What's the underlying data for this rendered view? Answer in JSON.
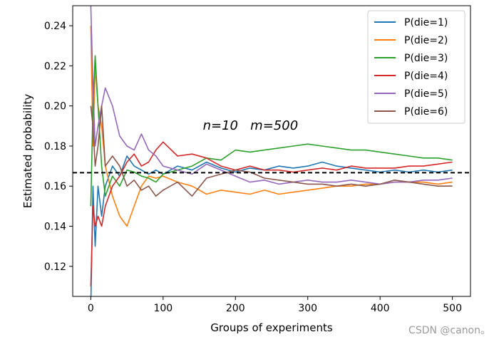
{
  "chart_data": {
    "type": "line",
    "title": "",
    "xlabel": "Groups of experiments",
    "ylabel": "Estimated probability",
    "xlim": [
      -25,
      525
    ],
    "ylim": [
      0.105,
      0.25
    ],
    "xticks": [
      0,
      100,
      200,
      300,
      400,
      500
    ],
    "yticks": [
      0.12,
      0.14,
      0.16,
      0.18,
      0.2,
      0.22,
      0.24
    ],
    "ytick_labels": [
      "0.12",
      "0.14",
      "0.16",
      "0.18",
      "0.20",
      "0.22",
      "0.24"
    ],
    "grid": false,
    "legend": "top-right",
    "reference_line": {
      "y": 0.1667,
      "style": "dashed",
      "color": "#000000"
    },
    "annotation": "n=10   m=500",
    "series": [
      {
        "name": "P(die=1)",
        "color": "#1f77b4",
        "x": [
          0,
          3,
          6,
          10,
          15,
          20,
          30,
          40,
          50,
          60,
          70,
          80,
          90,
          100,
          120,
          140,
          160,
          180,
          200,
          220,
          240,
          260,
          280,
          300,
          320,
          340,
          360,
          380,
          400,
          420,
          440,
          460,
          480,
          500
        ],
        "y": [
          0.1,
          0.16,
          0.13,
          0.16,
          0.145,
          0.16,
          0.17,
          0.165,
          0.175,
          0.17,
          0.168,
          0.166,
          0.168,
          0.166,
          0.17,
          0.168,
          0.172,
          0.169,
          0.167,
          0.169,
          0.168,
          0.17,
          0.169,
          0.17,
          0.172,
          0.17,
          0.169,
          0.168,
          0.167,
          0.168,
          0.167,
          0.168,
          0.167,
          0.168
        ]
      },
      {
        "name": "P(die=2)",
        "color": "#ff7f0e",
        "x": [
          0,
          3,
          6,
          10,
          15,
          20,
          30,
          40,
          50,
          60,
          70,
          80,
          90,
          100,
          120,
          140,
          160,
          180,
          200,
          220,
          240,
          260,
          280,
          300,
          320,
          340,
          360,
          380,
          400,
          420,
          440,
          460,
          480,
          500
        ],
        "y": [
          0.24,
          0.18,
          0.22,
          0.2,
          0.19,
          0.17,
          0.155,
          0.145,
          0.14,
          0.15,
          0.16,
          0.165,
          0.164,
          0.165,
          0.162,
          0.16,
          0.156,
          0.158,
          0.157,
          0.156,
          0.158,
          0.156,
          0.157,
          0.158,
          0.159,
          0.16,
          0.16,
          0.161,
          0.161,
          0.162,
          0.162,
          0.162,
          0.161,
          0.162
        ]
      },
      {
        "name": "P(die=3)",
        "color": "#2ca02c",
        "x": [
          0,
          3,
          6,
          10,
          15,
          20,
          30,
          40,
          50,
          60,
          70,
          80,
          90,
          100,
          120,
          140,
          160,
          180,
          200,
          220,
          240,
          260,
          280,
          300,
          320,
          340,
          360,
          380,
          400,
          420,
          440,
          460,
          480,
          500
        ],
        "y": [
          0.15,
          0.2,
          0.225,
          0.2,
          0.17,
          0.155,
          0.165,
          0.16,
          0.168,
          0.167,
          0.165,
          0.164,
          0.162,
          0.166,
          0.168,
          0.17,
          0.174,
          0.173,
          0.178,
          0.177,
          0.178,
          0.179,
          0.18,
          0.181,
          0.18,
          0.179,
          0.178,
          0.178,
          0.177,
          0.176,
          0.175,
          0.174,
          0.174,
          0.173
        ]
      },
      {
        "name": "P(die=4)",
        "color": "#d62728",
        "x": [
          0,
          3,
          6,
          10,
          15,
          20,
          30,
          40,
          50,
          60,
          70,
          80,
          90,
          100,
          120,
          140,
          160,
          180,
          200,
          220,
          240,
          260,
          280,
          300,
          320,
          340,
          360,
          380,
          400,
          420,
          440,
          460,
          480,
          500
        ],
        "y": [
          0.11,
          0.15,
          0.14,
          0.145,
          0.14,
          0.15,
          0.16,
          0.165,
          0.172,
          0.176,
          0.17,
          0.172,
          0.178,
          0.182,
          0.175,
          0.176,
          0.174,
          0.17,
          0.168,
          0.17,
          0.168,
          0.168,
          0.167,
          0.168,
          0.169,
          0.168,
          0.17,
          0.169,
          0.169,
          0.169,
          0.17,
          0.17,
          0.171,
          0.172
        ]
      },
      {
        "name": "P(die=5)",
        "color": "#9467bd",
        "x": [
          0,
          3,
          6,
          10,
          15,
          20,
          30,
          40,
          50,
          60,
          70,
          80,
          90,
          100,
          120,
          140,
          160,
          180,
          200,
          220,
          240,
          260,
          280,
          300,
          320,
          340,
          360,
          380,
          400,
          420,
          440,
          460,
          480,
          500
        ],
        "y": [
          0.25,
          0.21,
          0.18,
          0.19,
          0.2,
          0.209,
          0.2,
          0.185,
          0.18,
          0.178,
          0.186,
          0.178,
          0.175,
          0.17,
          0.168,
          0.166,
          0.171,
          0.168,
          0.165,
          0.162,
          0.163,
          0.161,
          0.162,
          0.163,
          0.162,
          0.162,
          0.163,
          0.162,
          0.161,
          0.162,
          0.162,
          0.163,
          0.163,
          0.164
        ]
      },
      {
        "name": "P(die=6)",
        "color": "#8c564b",
        "x": [
          0,
          3,
          6,
          10,
          15,
          20,
          30,
          40,
          50,
          60,
          70,
          80,
          90,
          100,
          120,
          140,
          160,
          180,
          200,
          220,
          240,
          260,
          280,
          300,
          320,
          340,
          360,
          380,
          400,
          420,
          440,
          460,
          480,
          500
        ],
        "y": [
          0.2,
          0.19,
          0.17,
          0.18,
          0.2,
          0.17,
          0.175,
          0.17,
          0.16,
          0.163,
          0.158,
          0.16,
          0.155,
          0.158,
          0.162,
          0.155,
          0.164,
          0.166,
          0.168,
          0.167,
          0.164,
          0.163,
          0.162,
          0.161,
          0.161,
          0.16,
          0.161,
          0.16,
          0.161,
          0.163,
          0.162,
          0.161,
          0.16,
          0.16
        ]
      }
    ]
  },
  "watermark": "CSDN @canon。"
}
